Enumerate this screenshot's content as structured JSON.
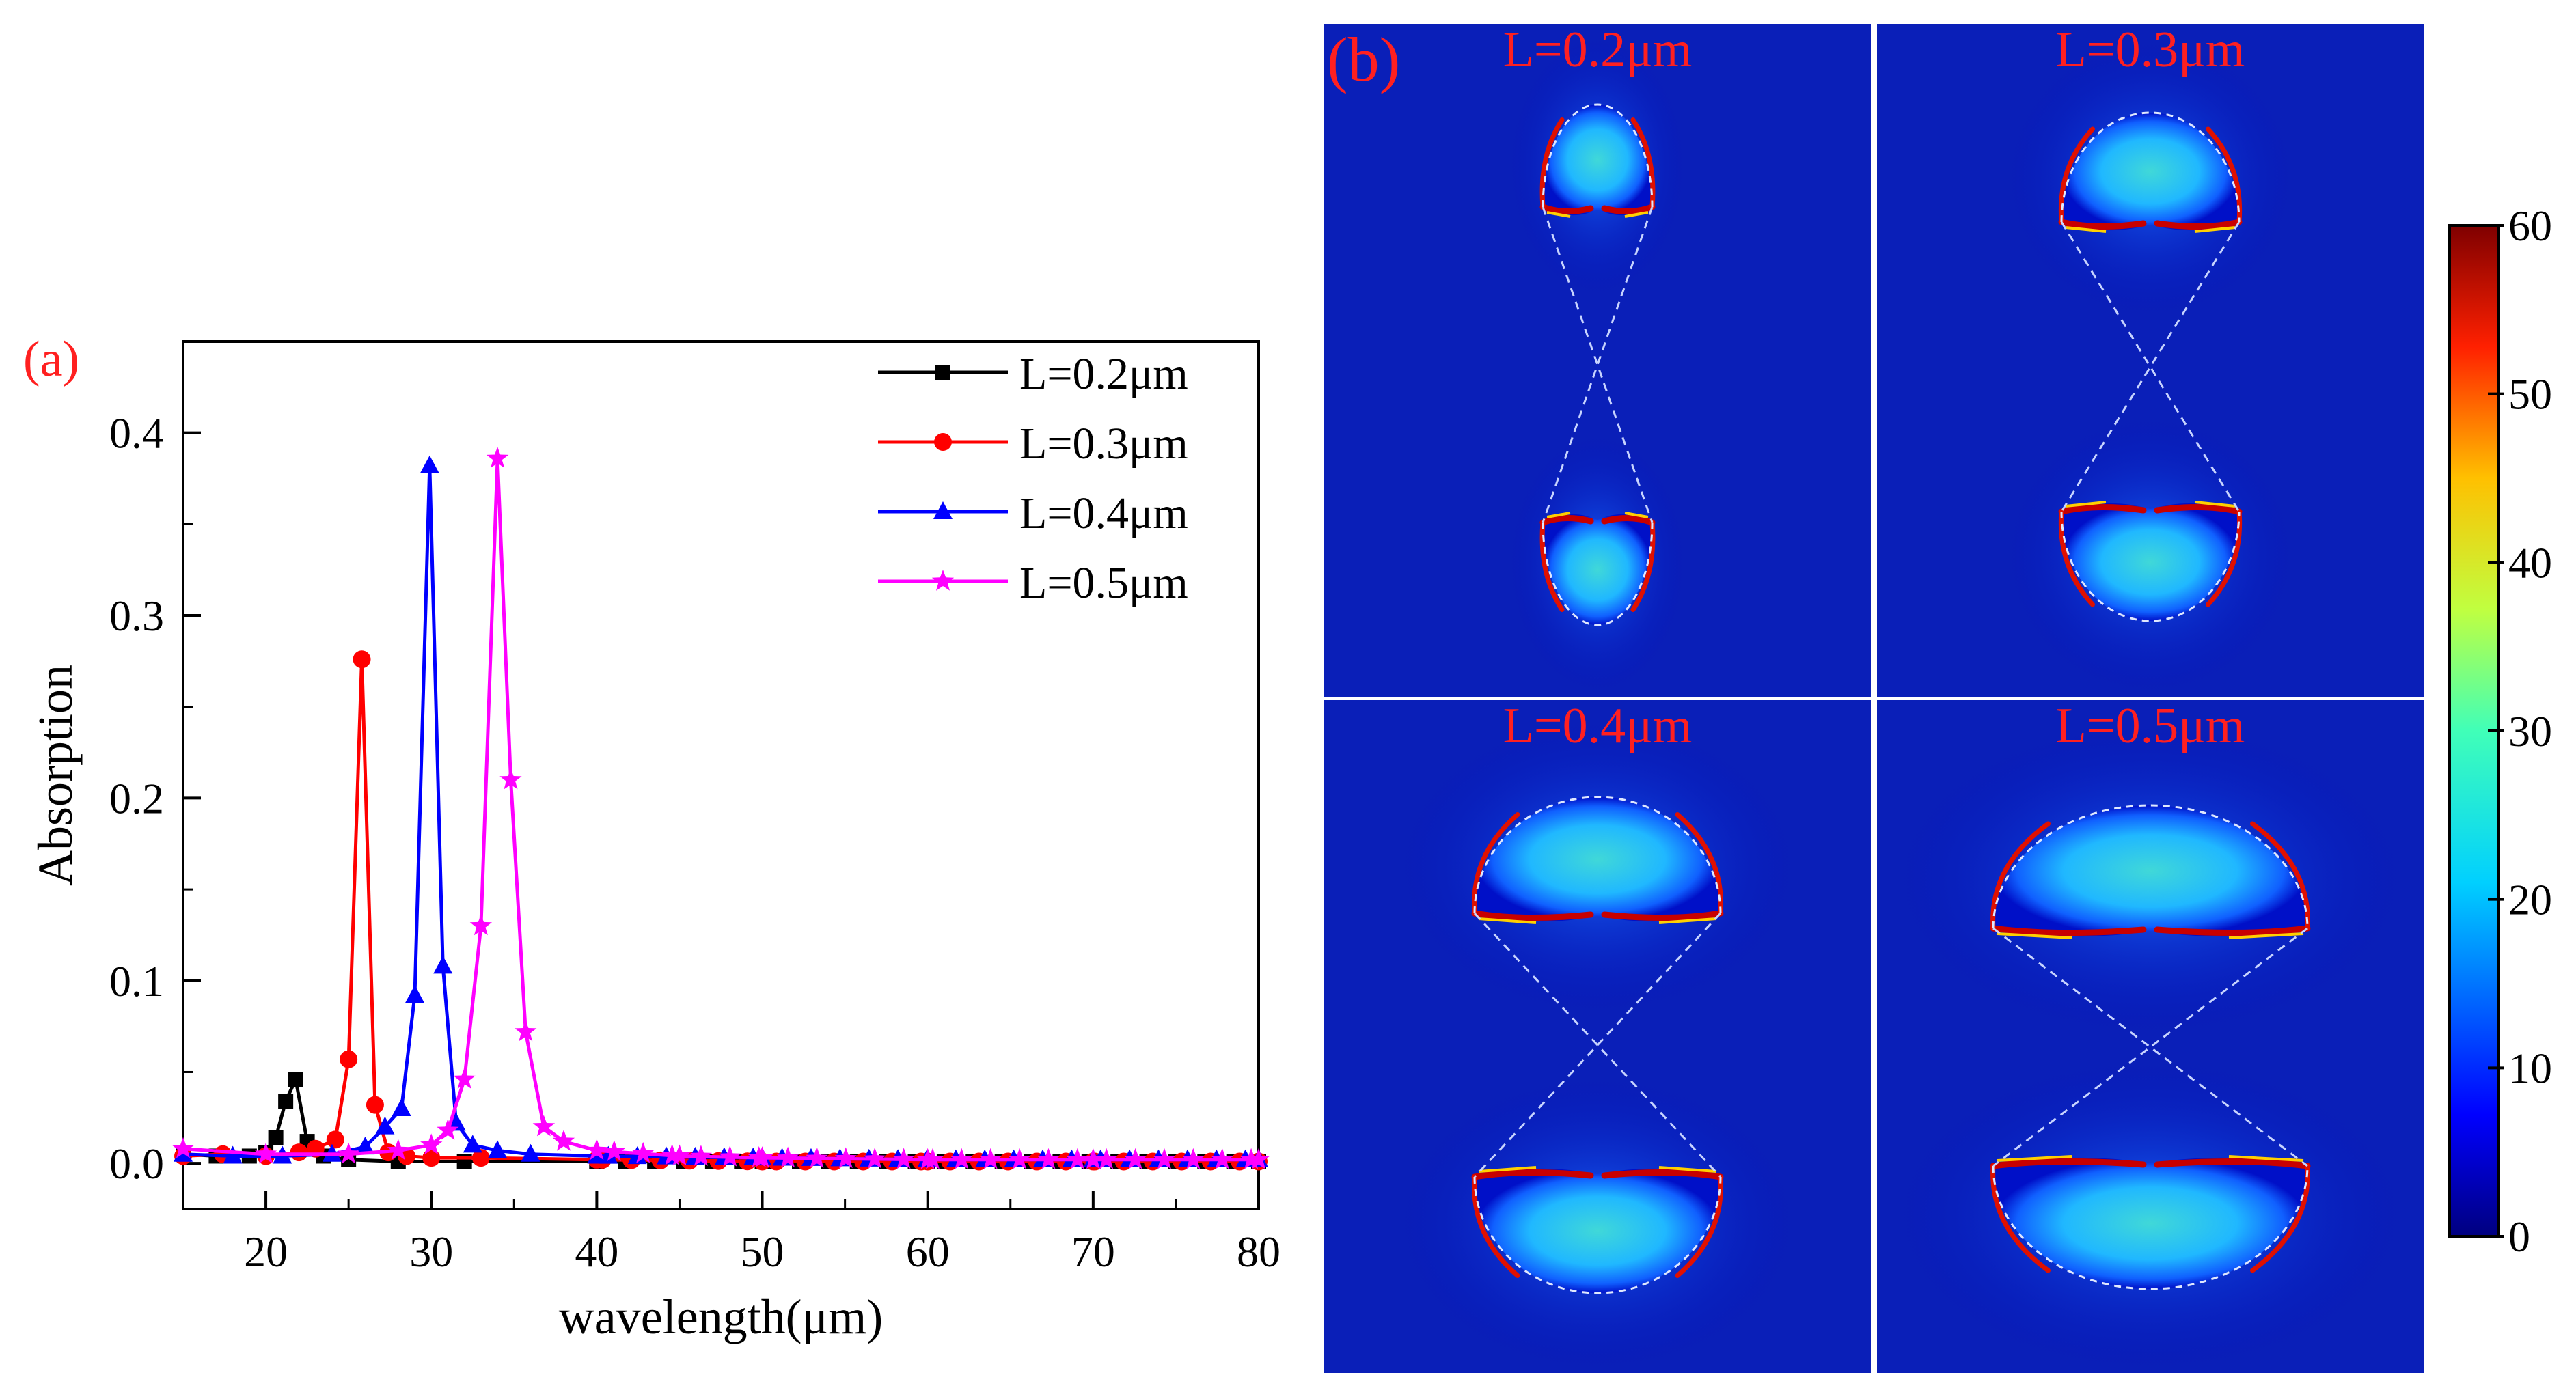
{
  "figure": {
    "panel_a_label": "(a)",
    "panel_b_label": "(b)"
  },
  "chart_data": [
    {
      "type": "line",
      "panel": "(a)",
      "xlabel": "wavelength(μm)",
      "ylabel": "Absorption",
      "xlim": [
        15,
        80
      ],
      "ylim": [
        -0.025,
        0.45
      ],
      "xticks": [
        20,
        30,
        40,
        50,
        60,
        70,
        80
      ],
      "yticks": [
        0.0,
        0.1,
        0.2,
        0.3,
        0.4
      ],
      "ytick_labels": [
        "0.0",
        "0.1",
        "0.2",
        "0.3",
        "0.4"
      ],
      "legend_position": "top-right",
      "series": [
        {
          "name": "L=0.2μm",
          "color": "#000000",
          "marker": "square",
          "x": [
            15,
            17,
            19,
            20,
            20.6,
            21.2,
            21.8,
            22.5,
            23.5,
            25,
            28,
            32,
            40,
            50,
            60,
            70,
            80
          ],
          "y": [
            0.005,
            0.004,
            0.004,
            0.006,
            0.014,
            0.034,
            0.046,
            0.012,
            0.004,
            0.002,
            0.001,
            0.001,
            0.001,
            0.001,
            0.001,
            0.001,
            0.001
          ]
        },
        {
          "name": "L=0.3μm",
          "color": "#ff0000",
          "marker": "circle",
          "x": [
            15,
            17.4,
            20,
            22,
            23,
            24.2,
            25,
            25.8,
            26.6,
            27.4,
            28.5,
            30,
            33,
            40,
            50,
            60,
            70,
            80
          ],
          "y": [
            0.004,
            0.005,
            0.004,
            0.006,
            0.008,
            0.013,
            0.057,
            0.276,
            0.032,
            0.006,
            0.004,
            0.003,
            0.003,
            0.002,
            0.001,
            0.001,
            0.001,
            0.001
          ]
        },
        {
          "name": "L=0.4μm",
          "color": "#0000ff",
          "marker": "triangle",
          "x": [
            15,
            18,
            21,
            24,
            26,
            27.2,
            28.2,
            29,
            29.9,
            30.7,
            31.5,
            32.5,
            34,
            36,
            40,
            50,
            60,
            70,
            80
          ],
          "y": [
            0.005,
            0.004,
            0.004,
            0.005,
            0.009,
            0.02,
            0.03,
            0.092,
            0.382,
            0.108,
            0.022,
            0.01,
            0.007,
            0.005,
            0.004,
            0.003,
            0.002,
            0.002,
            0.002
          ]
        },
        {
          "name": "L=0.5μm",
          "color": "#ff00ff",
          "marker": "star",
          "x": [
            15,
            20,
            25,
            28,
            30,
            31,
            32,
            33,
            34,
            34.8,
            35.7,
            36.8,
            38,
            40,
            45,
            50,
            60,
            70,
            80
          ],
          "y": [
            0.008,
            0.005,
            0.005,
            0.007,
            0.01,
            0.018,
            0.046,
            0.13,
            0.386,
            0.21,
            0.072,
            0.02,
            0.012,
            0.007,
            0.004,
            0.003,
            0.002,
            0.002,
            0.002
          ]
        }
      ]
    },
    {
      "type": "heatmap",
      "panel": "(b)",
      "subplot_titles": [
        "L=0.2μm",
        "L=0.3μm",
        "L=0.4μm",
        "L=0.5μm"
      ],
      "subplot_scales": [
        0.2,
        0.3,
        0.4,
        0.5
      ],
      "colorbar": {
        "min": 0,
        "max": 60,
        "ticks": [
          0,
          10,
          20,
          30,
          40,
          50,
          60
        ],
        "tick_labels": [
          "0",
          "10",
          "20",
          "30",
          "40",
          "50",
          "60"
        ]
      }
    }
  ]
}
